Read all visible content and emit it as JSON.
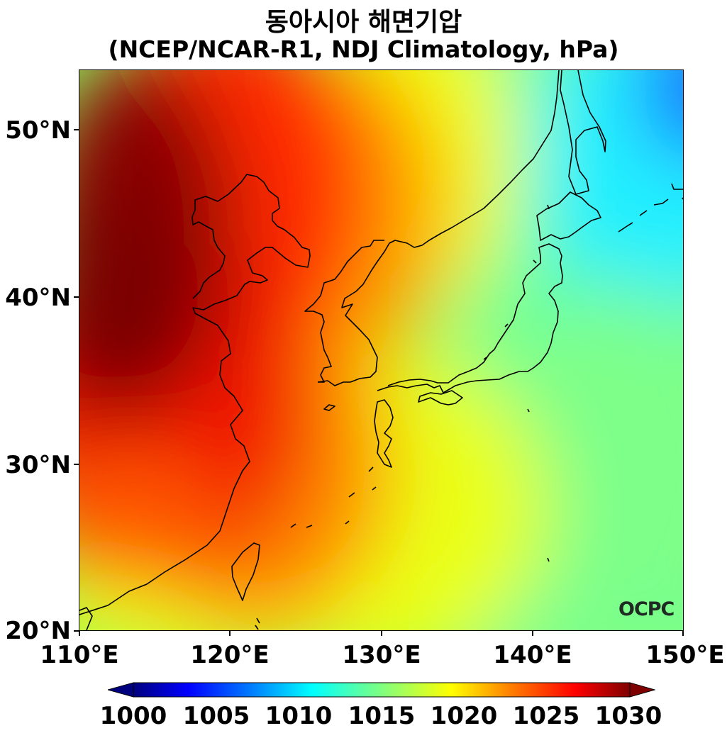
{
  "title": {
    "line1": "동아시아 해면기압",
    "line2": "(NCEP/NCAR-R1, NDJ Climatology, hPa)"
  },
  "map": {
    "lon_range": [
      110,
      150
    ],
    "lat_range": [
      20,
      53.5
    ],
    "x_ticks": [
      {
        "lon": 110,
        "label": "110°E"
      },
      {
        "lon": 120,
        "label": "120°E"
      },
      {
        "lon": 130,
        "label": "130°E"
      },
      {
        "lon": 140,
        "label": "140°E"
      },
      {
        "lon": 150,
        "label": "150°E"
      }
    ],
    "y_ticks": [
      {
        "lat": 20,
        "label": "20°N"
      },
      {
        "lat": 30,
        "label": "30°N"
      },
      {
        "lat": 40,
        "label": "40°N"
      },
      {
        "lat": 50,
        "label": "50°N"
      }
    ],
    "field_variable": "sea level pressure",
    "field_units": "hPa",
    "high_pressure_center": {
      "lon": 112,
      "lat": 44,
      "approx_value": 1031
    },
    "watermark": "OCPC"
  },
  "colorbar": {
    "min": 1000,
    "max": 1030,
    "colormap": "jet",
    "extend": "both",
    "tick_labels": [
      "1000",
      "1005",
      "1010",
      "1015",
      "1020",
      "1025",
      "1030"
    ],
    "colors": [
      "#00007f",
      "#0000ff",
      "#007fff",
      "#00ffff",
      "#7fff7f",
      "#ffff00",
      "#ff7f00",
      "#ff0000",
      "#7f0000"
    ]
  }
}
